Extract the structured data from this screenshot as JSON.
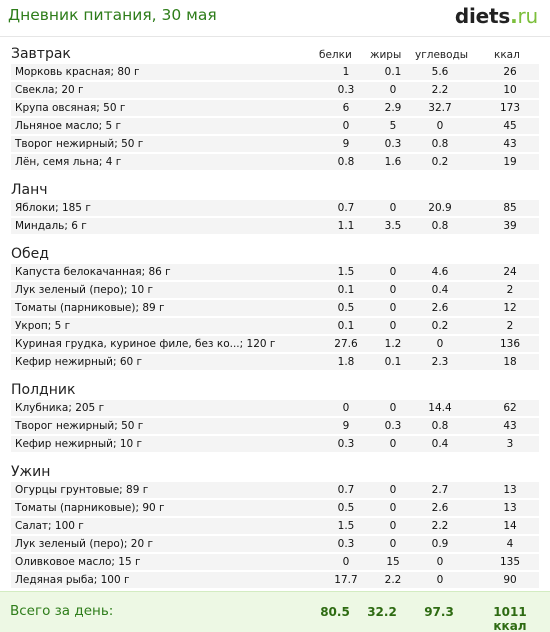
{
  "header": {
    "title": "Дневник питания, 30 мая",
    "logo_main": "diets",
    "logo_dot": ".",
    "logo_tld": "ru"
  },
  "columns": {
    "protein": "белки",
    "fat": "жиры",
    "carbs": "углеводы",
    "kcal": "ккал"
  },
  "meals": [
    {
      "title": "Завтрак",
      "items": [
        {
          "name": "Морковь красная; 80 г",
          "protein": "1",
          "fat": "0.1",
          "carbs": "5.6",
          "kcal": "26"
        },
        {
          "name": "Свекла; 20 г",
          "protein": "0.3",
          "fat": "0",
          "carbs": "2.2",
          "kcal": "10"
        },
        {
          "name": "Крупа овсяная; 50 г",
          "protein": "6",
          "fat": "2.9",
          "carbs": "32.7",
          "kcal": "173"
        },
        {
          "name": "Льняное масло; 5 г",
          "protein": "0",
          "fat": "5",
          "carbs": "0",
          "kcal": "45"
        },
        {
          "name": "Творог нежирный; 50 г",
          "protein": "9",
          "fat": "0.3",
          "carbs": "0.8",
          "kcal": "43"
        },
        {
          "name": "Лён, семя льна; 4 г",
          "protein": "0.8",
          "fat": "1.6",
          "carbs": "0.2",
          "kcal": "19"
        }
      ]
    },
    {
      "title": "Ланч",
      "items": [
        {
          "name": "Яблоки; 185 г",
          "protein": "0.7",
          "fat": "0",
          "carbs": "20.9",
          "kcal": "85"
        },
        {
          "name": "Миндаль; 6 г",
          "protein": "1.1",
          "fat": "3.5",
          "carbs": "0.8",
          "kcal": "39"
        }
      ]
    },
    {
      "title": "Обед",
      "items": [
        {
          "name": "Капуста белокачанная; 86 г",
          "protein": "1.5",
          "fat": "0",
          "carbs": "4.6",
          "kcal": "24"
        },
        {
          "name": "Лук зеленый (перо); 10 г",
          "protein": "0.1",
          "fat": "0",
          "carbs": "0.4",
          "kcal": "2"
        },
        {
          "name": "Томаты (парниковые); 89 г",
          "protein": "0.5",
          "fat": "0",
          "carbs": "2.6",
          "kcal": "12"
        },
        {
          "name": "Укроп; 5 г",
          "protein": "0.1",
          "fat": "0",
          "carbs": "0.2",
          "kcal": "2"
        },
        {
          "name": "Куриная грудка, куриное филе, без ко...; 120 г",
          "protein": "27.6",
          "fat": "1.2",
          "carbs": "0",
          "kcal": "136"
        },
        {
          "name": "Кефир нежирный; 60 г",
          "protein": "1.8",
          "fat": "0.1",
          "carbs": "2.3",
          "kcal": "18"
        }
      ]
    },
    {
      "title": "Полдник",
      "items": [
        {
          "name": "Клубника; 205 г",
          "protein": "0",
          "fat": "0",
          "carbs": "14.4",
          "kcal": "62"
        },
        {
          "name": "Творог нежирный; 50 г",
          "protein": "9",
          "fat": "0.3",
          "carbs": "0.8",
          "kcal": "43"
        },
        {
          "name": "Кефир нежирный; 10 г",
          "protein": "0.3",
          "fat": "0",
          "carbs": "0.4",
          "kcal": "3"
        }
      ]
    },
    {
      "title": "Ужин",
      "items": [
        {
          "name": "Огурцы грунтовые; 89 г",
          "protein": "0.7",
          "fat": "0",
          "carbs": "2.7",
          "kcal": "13"
        },
        {
          "name": "Томаты (парниковые); 90 г",
          "protein": "0.5",
          "fat": "0",
          "carbs": "2.6",
          "kcal": "13"
        },
        {
          "name": "Салат; 100 г",
          "protein": "1.5",
          "fat": "0",
          "carbs": "2.2",
          "kcal": "14"
        },
        {
          "name": "Лук зеленый (перо); 20 г",
          "protein": "0.3",
          "fat": "0",
          "carbs": "0.9",
          "kcal": "4"
        },
        {
          "name": "Оливковое масло; 15 г",
          "protein": "0",
          "fat": "15",
          "carbs": "0",
          "kcal": "135"
        },
        {
          "name": "Ледяная рыба; 100 г",
          "protein": "17.7",
          "fat": "2.2",
          "carbs": "0",
          "kcal": "90"
        }
      ]
    }
  ],
  "total": {
    "label": "Всего за день:",
    "protein": "80.5",
    "fat": "32.2",
    "carbs": "97.3",
    "kcal": "1011 ккал"
  },
  "colors": {
    "accent": "#2e7d1a",
    "row_bg": "#f4f4f4",
    "total_bg": "#edf8e4"
  }
}
